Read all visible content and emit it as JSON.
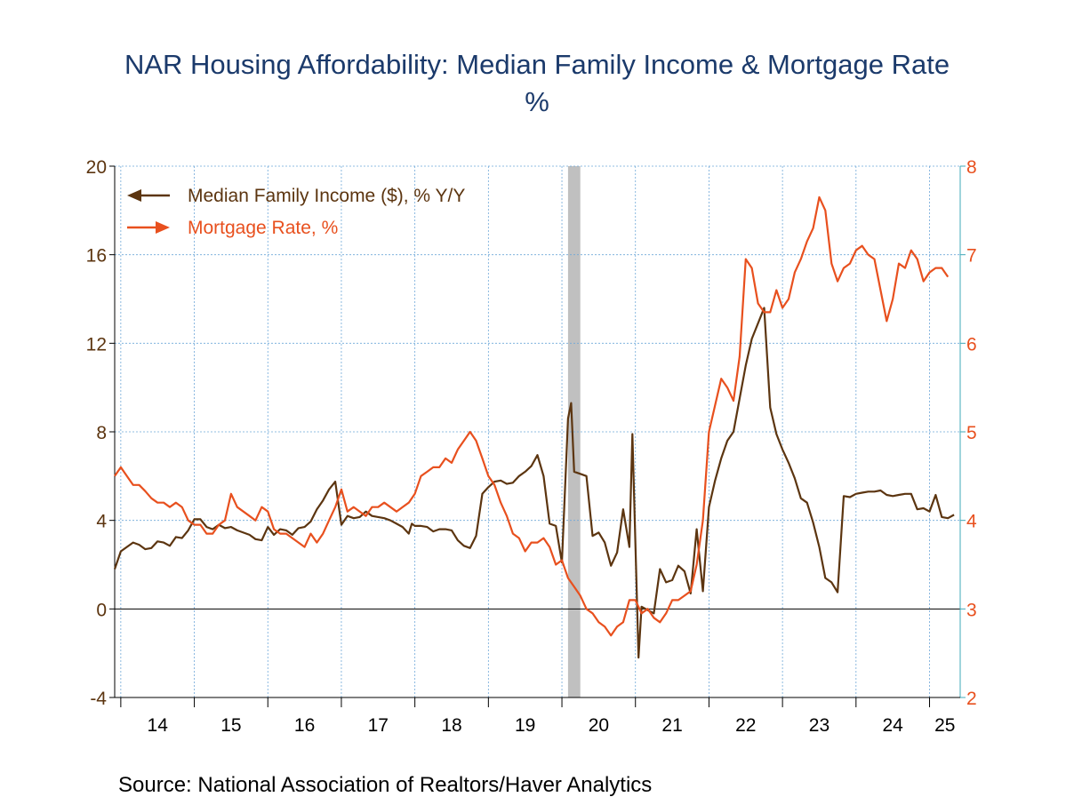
{
  "chart_data": {
    "type": "line",
    "title": "NAR Housing Affordability: Median Family Income & Mortgage Rate",
    "subtitle": "%",
    "source": "Source:  National Association of Realtors/Haver Analytics",
    "x_tick_labels": [
      "14",
      "15",
      "16",
      "17",
      "18",
      "19",
      "20",
      "21",
      "22",
      "23",
      "24",
      "25"
    ],
    "x_start": 2013.917,
    "x_end": 2025.417,
    "y_left": {
      "ticks": [
        -4,
        0,
        4,
        8,
        12,
        16,
        20
      ],
      "range": [
        -4,
        20
      ]
    },
    "y_right": {
      "ticks": [
        2,
        3,
        4,
        5,
        6,
        7,
        8
      ],
      "range": [
        2,
        8
      ]
    },
    "grid": true,
    "recession_shading": [
      2020.083,
      2020.25
    ],
    "legend_position": "top-left",
    "colors": {
      "income": "#5c3510",
      "mortgage": "#e8501e",
      "grid": "#6fa8d8",
      "right_axis": "#3fa8b8",
      "title": "#1b3a6b",
      "recession": "#c0c0c0"
    },
    "series": [
      {
        "name": "Median Family Income ($), % Y/Y",
        "axis": "left",
        "points": [
          [
            2013.917,
            1.8
          ],
          [
            2014.0,
            2.6
          ],
          [
            2014.083,
            2.8
          ],
          [
            2014.167,
            3.0
          ],
          [
            2014.25,
            2.9
          ],
          [
            2014.333,
            2.7
          ],
          [
            2014.417,
            2.75
          ],
          [
            2014.5,
            3.05
          ],
          [
            2014.583,
            3.0
          ],
          [
            2014.667,
            2.85
          ],
          [
            2014.75,
            3.25
          ],
          [
            2014.833,
            3.2
          ],
          [
            2014.917,
            3.55
          ],
          [
            2015.0,
            4.05
          ],
          [
            2015.083,
            4.05
          ],
          [
            2015.167,
            3.7
          ],
          [
            2015.25,
            3.6
          ],
          [
            2015.333,
            3.8
          ],
          [
            2015.417,
            3.65
          ],
          [
            2015.5,
            3.7
          ],
          [
            2015.583,
            3.55
          ],
          [
            2015.667,
            3.45
          ],
          [
            2015.75,
            3.35
          ],
          [
            2015.833,
            3.15
          ],
          [
            2015.917,
            3.1
          ],
          [
            2016.0,
            3.7
          ],
          [
            2016.083,
            3.35
          ],
          [
            2016.167,
            3.6
          ],
          [
            2016.25,
            3.55
          ],
          [
            2016.333,
            3.35
          ],
          [
            2016.417,
            3.65
          ],
          [
            2016.5,
            3.7
          ],
          [
            2016.583,
            3.95
          ],
          [
            2016.667,
            4.5
          ],
          [
            2016.75,
            4.9
          ],
          [
            2016.833,
            5.4
          ],
          [
            2016.917,
            5.75
          ],
          [
            2017.0,
            3.8
          ],
          [
            2017.083,
            4.2
          ],
          [
            2017.167,
            4.1
          ],
          [
            2017.25,
            4.15
          ],
          [
            2017.333,
            4.4
          ],
          [
            2017.417,
            4.2
          ],
          [
            2017.5,
            4.15
          ],
          [
            2017.583,
            4.1
          ],
          [
            2017.667,
            4.0
          ],
          [
            2017.75,
            3.85
          ],
          [
            2017.833,
            3.7
          ],
          [
            2017.917,
            3.4
          ],
          [
            2017.958,
            3.85
          ],
          [
            2018.0,
            3.75
          ],
          [
            2018.083,
            3.75
          ],
          [
            2018.167,
            3.7
          ],
          [
            2018.25,
            3.5
          ],
          [
            2018.333,
            3.6
          ],
          [
            2018.417,
            3.6
          ],
          [
            2018.5,
            3.55
          ],
          [
            2018.583,
            3.1
          ],
          [
            2018.667,
            2.85
          ],
          [
            2018.75,
            2.75
          ],
          [
            2018.833,
            3.3
          ],
          [
            2018.917,
            5.2
          ],
          [
            2019.0,
            5.5
          ],
          [
            2019.083,
            5.75
          ],
          [
            2019.167,
            5.8
          ],
          [
            2019.25,
            5.65
          ],
          [
            2019.333,
            5.7
          ],
          [
            2019.417,
            6.0
          ],
          [
            2019.5,
            6.2
          ],
          [
            2019.583,
            6.45
          ],
          [
            2019.667,
            6.95
          ],
          [
            2019.75,
            6.0
          ],
          [
            2019.833,
            3.85
          ],
          [
            2019.917,
            3.75
          ],
          [
            2020.0,
            2.1
          ],
          [
            2020.083,
            8.6
          ],
          [
            2020.125,
            9.3
          ],
          [
            2020.167,
            6.2
          ],
          [
            2020.25,
            6.1
          ],
          [
            2020.333,
            6.0
          ],
          [
            2020.417,
            3.3
          ],
          [
            2020.5,
            3.45
          ],
          [
            2020.583,
            3.0
          ],
          [
            2020.667,
            1.95
          ],
          [
            2020.75,
            2.55
          ],
          [
            2020.833,
            4.5
          ],
          [
            2020.917,
            2.8
          ],
          [
            2020.958,
            7.9
          ],
          [
            2021.042,
            -2.2
          ],
          [
            2021.083,
            0.1
          ],
          [
            2021.167,
            -0.05
          ],
          [
            2021.25,
            -0.2
          ],
          [
            2021.333,
            1.8
          ],
          [
            2021.417,
            1.2
          ],
          [
            2021.5,
            1.3
          ],
          [
            2021.583,
            1.95
          ],
          [
            2021.667,
            1.7
          ],
          [
            2021.75,
            0.7
          ],
          [
            2021.833,
            3.6
          ],
          [
            2021.917,
            0.8
          ],
          [
            2022.0,
            4.6
          ],
          [
            2022.083,
            5.8
          ],
          [
            2022.167,
            6.8
          ],
          [
            2022.25,
            7.6
          ],
          [
            2022.333,
            8.0
          ],
          [
            2022.417,
            9.5
          ],
          [
            2022.5,
            11.0
          ],
          [
            2022.583,
            12.2
          ],
          [
            2022.667,
            12.9
          ],
          [
            2022.75,
            13.6
          ],
          [
            2022.833,
            9.1
          ],
          [
            2022.917,
            7.9
          ],
          [
            2023.0,
            7.2
          ],
          [
            2023.083,
            6.6
          ],
          [
            2023.167,
            5.9
          ],
          [
            2023.25,
            5.0
          ],
          [
            2023.333,
            4.8
          ],
          [
            2023.417,
            3.9
          ],
          [
            2023.5,
            2.8
          ],
          [
            2023.583,
            1.4
          ],
          [
            2023.667,
            1.2
          ],
          [
            2023.75,
            0.75
          ],
          [
            2023.833,
            5.1
          ],
          [
            2023.917,
            5.05
          ],
          [
            2024.0,
            5.2
          ],
          [
            2024.083,
            5.25
          ],
          [
            2024.167,
            5.3
          ],
          [
            2024.25,
            5.3
          ],
          [
            2024.333,
            5.35
          ],
          [
            2024.417,
            5.15
          ],
          [
            2024.5,
            5.1
          ],
          [
            2024.583,
            5.15
          ],
          [
            2024.667,
            5.2
          ],
          [
            2024.75,
            5.2
          ],
          [
            2024.833,
            4.5
          ],
          [
            2024.917,
            4.55
          ],
          [
            2025.0,
            4.4
          ],
          [
            2025.083,
            5.15
          ],
          [
            2025.167,
            4.15
          ],
          [
            2025.25,
            4.1
          ],
          [
            2025.333,
            4.25
          ]
        ]
      },
      {
        "name": "Mortgage Rate, %",
        "axis": "right",
        "points": [
          [
            2013.917,
            4.5
          ],
          [
            2014.0,
            4.6
          ],
          [
            2014.083,
            4.5
          ],
          [
            2014.167,
            4.4
          ],
          [
            2014.25,
            4.4
          ],
          [
            2014.333,
            4.33
          ],
          [
            2014.417,
            4.25
          ],
          [
            2014.5,
            4.2
          ],
          [
            2014.583,
            4.2
          ],
          [
            2014.667,
            4.15
          ],
          [
            2014.75,
            4.2
          ],
          [
            2014.833,
            4.15
          ],
          [
            2014.917,
            4.0
          ],
          [
            2015.0,
            3.95
          ],
          [
            2015.083,
            3.95
          ],
          [
            2015.167,
            3.85
          ],
          [
            2015.25,
            3.85
          ],
          [
            2015.333,
            3.95
          ],
          [
            2015.417,
            4.0
          ],
          [
            2015.5,
            4.3
          ],
          [
            2015.583,
            4.15
          ],
          [
            2015.667,
            4.1
          ],
          [
            2015.75,
            4.05
          ],
          [
            2015.833,
            4.0
          ],
          [
            2015.917,
            4.15
          ],
          [
            2016.0,
            4.1
          ],
          [
            2016.083,
            3.9
          ],
          [
            2016.167,
            3.85
          ],
          [
            2016.25,
            3.85
          ],
          [
            2016.333,
            3.8
          ],
          [
            2016.417,
            3.75
          ],
          [
            2016.5,
            3.7
          ],
          [
            2016.583,
            3.85
          ],
          [
            2016.667,
            3.75
          ],
          [
            2016.75,
            3.85
          ],
          [
            2016.833,
            4.0
          ],
          [
            2016.917,
            4.15
          ],
          [
            2017.0,
            4.35
          ],
          [
            2017.083,
            4.1
          ],
          [
            2017.167,
            4.15
          ],
          [
            2017.25,
            4.1
          ],
          [
            2017.333,
            4.05
          ],
          [
            2017.417,
            4.15
          ],
          [
            2017.5,
            4.15
          ],
          [
            2017.583,
            4.2
          ],
          [
            2017.667,
            4.15
          ],
          [
            2017.75,
            4.1
          ],
          [
            2017.833,
            4.15
          ],
          [
            2017.917,
            4.2
          ],
          [
            2018.0,
            4.3
          ],
          [
            2018.083,
            4.5
          ],
          [
            2018.167,
            4.55
          ],
          [
            2018.25,
            4.6
          ],
          [
            2018.333,
            4.6
          ],
          [
            2018.417,
            4.7
          ],
          [
            2018.5,
            4.65
          ],
          [
            2018.583,
            4.8
          ],
          [
            2018.667,
            4.9
          ],
          [
            2018.75,
            5.0
          ],
          [
            2018.833,
            4.9
          ],
          [
            2018.917,
            4.7
          ],
          [
            2019.0,
            4.5
          ],
          [
            2019.083,
            4.4
          ],
          [
            2019.167,
            4.2
          ],
          [
            2019.25,
            4.05
          ],
          [
            2019.333,
            3.85
          ],
          [
            2019.417,
            3.8
          ],
          [
            2019.5,
            3.65
          ],
          [
            2019.583,
            3.75
          ],
          [
            2019.667,
            3.75
          ],
          [
            2019.75,
            3.8
          ],
          [
            2019.833,
            3.7
          ],
          [
            2019.917,
            3.5
          ],
          [
            2020.0,
            3.55
          ],
          [
            2020.083,
            3.35
          ],
          [
            2020.167,
            3.25
          ],
          [
            2020.25,
            3.15
          ],
          [
            2020.333,
            3.0
          ],
          [
            2020.417,
            2.95
          ],
          [
            2020.5,
            2.85
          ],
          [
            2020.583,
            2.8
          ],
          [
            2020.667,
            2.7
          ],
          [
            2020.75,
            2.8
          ],
          [
            2020.833,
            2.85
          ],
          [
            2020.917,
            3.1
          ],
          [
            2021.0,
            3.1
          ],
          [
            2021.083,
            2.95
          ],
          [
            2021.167,
            3.0
          ],
          [
            2021.25,
            2.9
          ],
          [
            2021.333,
            2.85
          ],
          [
            2021.417,
            2.95
          ],
          [
            2021.5,
            3.1
          ],
          [
            2021.583,
            3.1
          ],
          [
            2021.667,
            3.15
          ],
          [
            2021.75,
            3.2
          ],
          [
            2021.833,
            3.5
          ],
          [
            2021.917,
            4.0
          ],
          [
            2022.0,
            5.0
          ],
          [
            2022.083,
            5.3
          ],
          [
            2022.167,
            5.6
          ],
          [
            2022.25,
            5.5
          ],
          [
            2022.333,
            5.35
          ],
          [
            2022.417,
            5.85
          ],
          [
            2022.5,
            6.95
          ],
          [
            2022.583,
            6.85
          ],
          [
            2022.667,
            6.45
          ],
          [
            2022.75,
            6.35
          ],
          [
            2022.833,
            6.35
          ],
          [
            2022.917,
            6.6
          ],
          [
            2023.0,
            6.4
          ],
          [
            2023.083,
            6.5
          ],
          [
            2023.167,
            6.8
          ],
          [
            2023.25,
            6.95
          ],
          [
            2023.333,
            7.15
          ],
          [
            2023.417,
            7.3
          ],
          [
            2023.5,
            7.65
          ],
          [
            2023.583,
            7.5
          ],
          [
            2023.667,
            6.9
          ],
          [
            2023.75,
            6.7
          ],
          [
            2023.833,
            6.85
          ],
          [
            2023.917,
            6.9
          ],
          [
            2024.0,
            7.05
          ],
          [
            2024.083,
            7.1
          ],
          [
            2024.167,
            7.0
          ],
          [
            2024.25,
            6.95
          ],
          [
            2024.333,
            6.6
          ],
          [
            2024.417,
            6.25
          ],
          [
            2024.5,
            6.5
          ],
          [
            2024.583,
            6.9
          ],
          [
            2024.667,
            6.85
          ],
          [
            2024.75,
            7.05
          ],
          [
            2024.833,
            6.95
          ],
          [
            2024.917,
            6.7
          ],
          [
            2025.0,
            6.8
          ],
          [
            2025.083,
            6.85
          ],
          [
            2025.167,
            6.85
          ],
          [
            2025.25,
            6.75
          ]
        ]
      }
    ]
  }
}
